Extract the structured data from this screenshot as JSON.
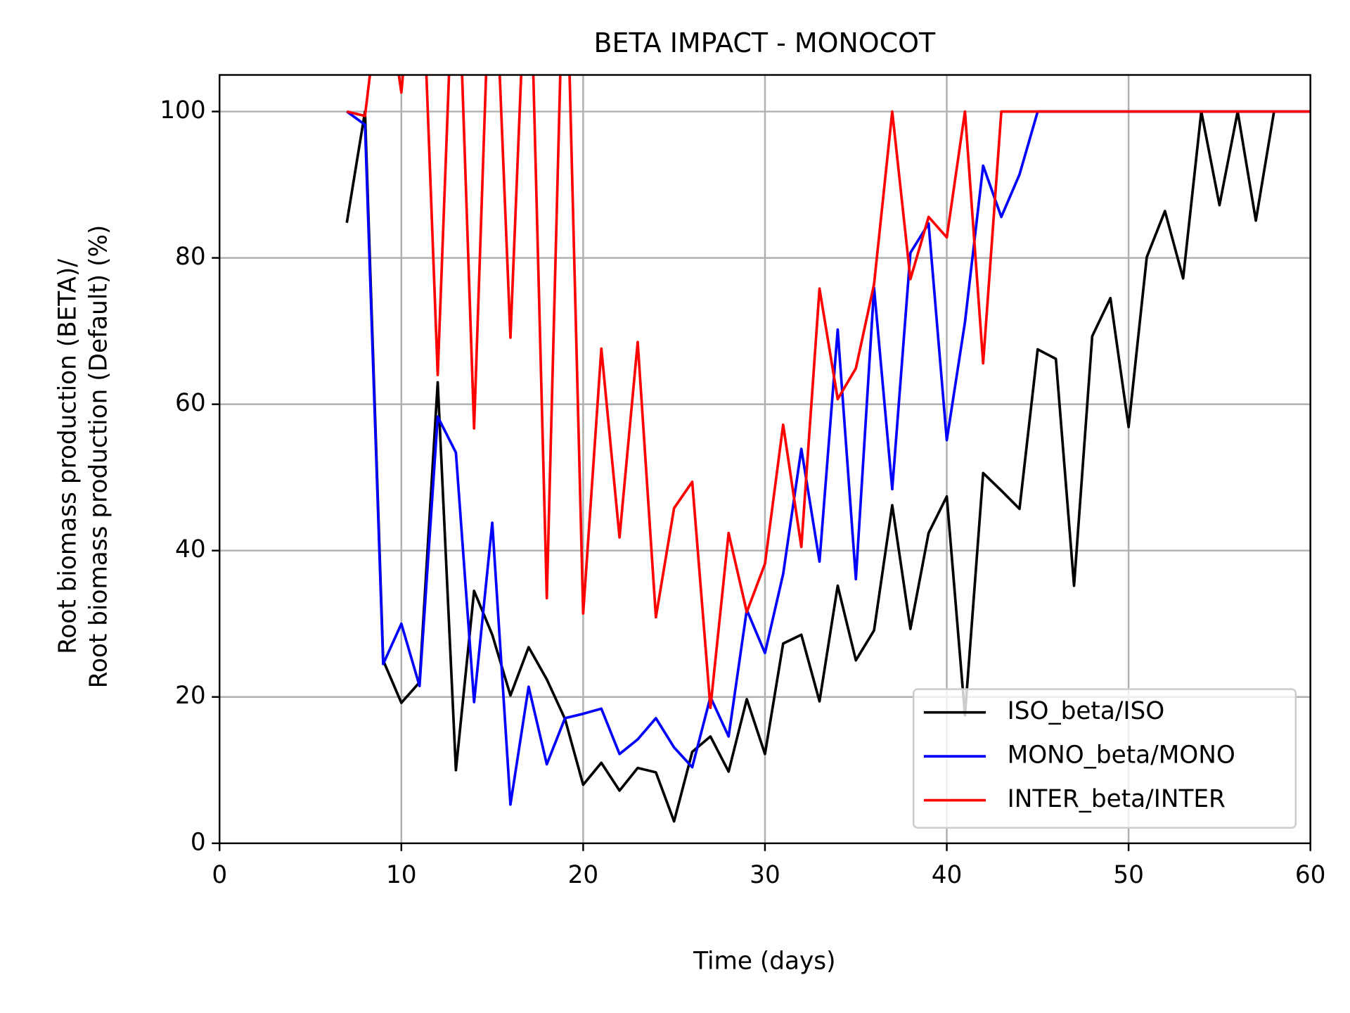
{
  "chart_data": {
    "type": "line",
    "title": "BETA IMPACT - MONOCOT",
    "x_label": "Time (days)",
    "y_label": [
      "Root biomass production (BETA)/",
      "Root biomass production (Default) (%)"
    ],
    "x": [
      7,
      8,
      9,
      10,
      11,
      12,
      13,
      14,
      15,
      16,
      17,
      18,
      19,
      20,
      21,
      22,
      23,
      24,
      25,
      26,
      27,
      28,
      29,
      30,
      31,
      32,
      33,
      34,
      35,
      36,
      37,
      38,
      39,
      40,
      41,
      42,
      43,
      44,
      45,
      46,
      47,
      48,
      49,
      50,
      51,
      52,
      53,
      54,
      55,
      56,
      57,
      58,
      59,
      60
    ],
    "series": [
      {
        "name": "ISO_beta/ISO",
        "color": "#000000",
        "values": [
          84.8,
          100,
          25,
          19.2,
          22,
          63,
          10,
          34.5,
          28.5,
          20.2,
          26.8,
          22.4,
          17,
          8,
          11,
          7.2,
          10.3,
          9.7,
          3,
          12.5,
          14.6,
          9.8,
          19.7,
          12.2,
          27.3,
          28.5,
          19.4,
          35.2,
          25,
          29.1,
          46.2,
          29.3,
          42.4,
          47.4,
          17.5,
          50.6,
          48.2,
          45.7,
          67.5,
          66.2,
          35.2,
          69.3,
          74.5,
          56.9,
          80.1,
          86.4,
          77.2,
          100,
          87.2,
          100,
          85.1,
          100,
          null,
          null
        ]
      },
      {
        "name": "MONO_beta/MONO",
        "color": "#0000ff",
        "values": [
          100,
          98.2,
          24.5,
          30,
          21.5,
          58.3,
          53.4,
          19.3,
          43.8,
          5.3,
          21.4,
          10.8,
          17.1,
          17.7,
          18.4,
          12.2,
          14.2,
          17.1,
          13.1,
          10.4,
          20,
          14.6,
          31.9,
          26,
          36.8,
          53.9,
          38.5,
          70.2,
          36.1,
          75.9,
          48.4,
          80.7,
          84.7,
          55.1,
          71.2,
          92.6,
          85.6,
          91.4,
          100,
          100,
          100,
          100,
          100,
          100,
          100,
          100,
          100,
          100,
          100,
          100,
          100,
          100,
          100,
          100
        ]
      },
      {
        "name": "INTER_beta/INTER",
        "color": "#ff0000",
        "values": [
          100,
          99.4,
          120,
          102.6,
          130,
          64,
          130,
          56.7,
          130,
          69.1,
          130,
          33.5,
          130,
          31.4,
          67.6,
          41.8,
          68.5,
          30.9,
          45.8,
          49.4,
          18.5,
          42.4,
          31.6,
          38.2,
          57.2,
          40.5,
          75.8,
          60.7,
          64.9,
          76.4,
          100,
          77.1,
          85.6,
          82.8,
          100,
          65.6,
          100,
          100,
          100,
          100,
          100,
          100,
          100,
          100,
          100,
          100,
          100,
          100,
          100,
          100,
          100,
          100,
          100,
          100
        ]
      }
    ],
    "xlim": [
      0,
      60
    ],
    "xticks": [
      0,
      10,
      20,
      30,
      40,
      50,
      60
    ],
    "ylim": [
      0,
      105
    ],
    "yticks": [
      0,
      20,
      40,
      60,
      80,
      100
    ],
    "grid": true,
    "legend": "lower right"
  }
}
